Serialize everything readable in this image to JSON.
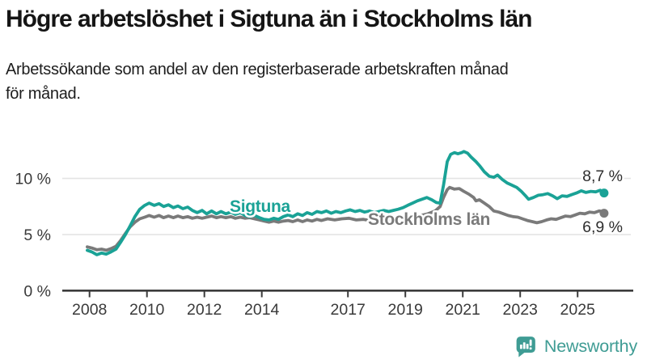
{
  "colors": {
    "sigtuna": "#1aa296",
    "stockholm": "#7a7a7a",
    "grid": "#e4e4e4",
    "axis": "#3c3c3c",
    "axis_text": "#3a3a3a",
    "title_text": "#151515",
    "brand_teal": "#3f9c94"
  },
  "footer": {
    "brand": "Newsworthy",
    "brand_icon": "bar-chart-speech-bubble-icon"
  },
  "chart_data": {
    "type": "line",
    "title": "Högre arbetslöshet i Sigtuna än i Stockholms län",
    "subtitle": "Arbetssökande som andel av den registerbaserade arbetskraften månad för månad.",
    "subtitle_lines": [
      "Arbetssökande som andel av den registerbaserade arbetskraften månad",
      "för månad."
    ],
    "xlabel": "",
    "ylabel": "",
    "unit": "%",
    "grid": "horizontal",
    "legend_position": "inline-labels",
    "x_axis": {
      "ticks": [
        2008,
        2010,
        2012,
        2014,
        2017,
        2019,
        2021,
        2023,
        2025
      ],
      "range": [
        2007.9,
        2026.3
      ]
    },
    "y_axis": {
      "ticks": [
        {
          "value": 0,
          "label": "0 %"
        },
        {
          "value": 5,
          "label": "5 %"
        },
        {
          "value": 10,
          "label": "10 %"
        }
      ],
      "range": [
        0,
        13
      ]
    },
    "series": [
      {
        "name": "Sigtuna",
        "color": "#1aa296",
        "end_label": "8,7 %",
        "end_value": 8.7,
        "points": [
          [
            2007.92,
            3.6
          ],
          [
            2008.08,
            3.45
          ],
          [
            2008.25,
            3.2
          ],
          [
            2008.42,
            3.35
          ],
          [
            2008.58,
            3.25
          ],
          [
            2008.75,
            3.45
          ],
          [
            2008.92,
            3.7
          ],
          [
            2009.08,
            4.3
          ],
          [
            2009.25,
            5.0
          ],
          [
            2009.42,
            5.8
          ],
          [
            2009.58,
            6.6
          ],
          [
            2009.75,
            7.25
          ],
          [
            2009.92,
            7.6
          ],
          [
            2010.08,
            7.8
          ],
          [
            2010.25,
            7.6
          ],
          [
            2010.42,
            7.75
          ],
          [
            2010.58,
            7.5
          ],
          [
            2010.75,
            7.65
          ],
          [
            2010.92,
            7.4
          ],
          [
            2011.08,
            7.55
          ],
          [
            2011.25,
            7.3
          ],
          [
            2011.42,
            7.45
          ],
          [
            2011.58,
            7.15
          ],
          [
            2011.75,
            6.95
          ],
          [
            2011.92,
            7.15
          ],
          [
            2012.08,
            6.85
          ],
          [
            2012.25,
            7.1
          ],
          [
            2012.42,
            6.85
          ],
          [
            2012.58,
            7.05
          ],
          [
            2012.75,
            6.85
          ],
          [
            2012.92,
            7.0
          ],
          [
            2013.08,
            6.8
          ],
          [
            2013.25,
            6.95
          ],
          [
            2013.42,
            6.7
          ],
          [
            2013.58,
            6.6
          ],
          [
            2013.75,
            6.7
          ],
          [
            2013.92,
            6.5
          ],
          [
            2014.08,
            6.35
          ],
          [
            2014.25,
            6.3
          ],
          [
            2014.42,
            6.45
          ],
          [
            2014.58,
            6.35
          ],
          [
            2014.75,
            6.6
          ],
          [
            2014.92,
            6.75
          ],
          [
            2015.08,
            6.6
          ],
          [
            2015.25,
            6.85
          ],
          [
            2015.42,
            6.7
          ],
          [
            2015.58,
            6.95
          ],
          [
            2015.75,
            6.8
          ],
          [
            2015.92,
            7.05
          ],
          [
            2016.08,
            6.95
          ],
          [
            2016.25,
            7.1
          ],
          [
            2016.42,
            6.9
          ],
          [
            2016.58,
            7.05
          ],
          [
            2016.75,
            6.95
          ],
          [
            2016.92,
            7.1
          ],
          [
            2017.08,
            7.2
          ],
          [
            2017.25,
            7.05
          ],
          [
            2017.42,
            7.15
          ],
          [
            2017.58,
            7.0
          ],
          [
            2017.75,
            7.1
          ],
          [
            2017.92,
            6.95
          ],
          [
            2018.08,
            7.05
          ],
          [
            2018.25,
            7.15
          ],
          [
            2018.42,
            7.05
          ],
          [
            2018.58,
            7.15
          ],
          [
            2018.75,
            7.25
          ],
          [
            2018.92,
            7.4
          ],
          [
            2019.08,
            7.6
          ],
          [
            2019.25,
            7.8
          ],
          [
            2019.42,
            8.0
          ],
          [
            2019.58,
            8.15
          ],
          [
            2019.75,
            8.3
          ],
          [
            2019.92,
            8.1
          ],
          [
            2020.08,
            7.85
          ],
          [
            2020.21,
            7.8
          ],
          [
            2020.33,
            9.4
          ],
          [
            2020.46,
            11.5
          ],
          [
            2020.58,
            12.15
          ],
          [
            2020.71,
            12.3
          ],
          [
            2020.83,
            12.2
          ],
          [
            2020.96,
            12.3
          ],
          [
            2021.04,
            12.4
          ],
          [
            2021.17,
            12.25
          ],
          [
            2021.29,
            11.9
          ],
          [
            2021.46,
            11.5
          ],
          [
            2021.58,
            11.15
          ],
          [
            2021.75,
            10.6
          ],
          [
            2021.92,
            10.2
          ],
          [
            2022.08,
            10.1
          ],
          [
            2022.21,
            10.3
          ],
          [
            2022.38,
            9.9
          ],
          [
            2022.54,
            9.6
          ],
          [
            2022.71,
            9.4
          ],
          [
            2022.88,
            9.2
          ],
          [
            2023.04,
            8.85
          ],
          [
            2023.17,
            8.5
          ],
          [
            2023.29,
            8.15
          ],
          [
            2023.46,
            8.3
          ],
          [
            2023.63,
            8.5
          ],
          [
            2023.79,
            8.55
          ],
          [
            2023.96,
            8.65
          ],
          [
            2024.13,
            8.45
          ],
          [
            2024.29,
            8.2
          ],
          [
            2024.46,
            8.45
          ],
          [
            2024.63,
            8.4
          ],
          [
            2024.79,
            8.55
          ],
          [
            2024.96,
            8.7
          ],
          [
            2025.13,
            8.9
          ],
          [
            2025.29,
            8.75
          ],
          [
            2025.46,
            8.85
          ],
          [
            2025.63,
            8.8
          ],
          [
            2025.79,
            8.95
          ],
          [
            2025.92,
            8.7
          ]
        ]
      },
      {
        "name": "Stockholms län",
        "color": "#7a7a7a",
        "end_label": "6,9 %",
        "end_value": 6.9,
        "points": [
          [
            2007.92,
            3.9
          ],
          [
            2008.08,
            3.8
          ],
          [
            2008.25,
            3.65
          ],
          [
            2008.42,
            3.7
          ],
          [
            2008.58,
            3.6
          ],
          [
            2008.75,
            3.75
          ],
          [
            2008.92,
            3.95
          ],
          [
            2009.08,
            4.45
          ],
          [
            2009.25,
            5.1
          ],
          [
            2009.42,
            5.7
          ],
          [
            2009.58,
            6.1
          ],
          [
            2009.75,
            6.4
          ],
          [
            2009.92,
            6.55
          ],
          [
            2010.08,
            6.7
          ],
          [
            2010.25,
            6.55
          ],
          [
            2010.42,
            6.7
          ],
          [
            2010.58,
            6.5
          ],
          [
            2010.75,
            6.65
          ],
          [
            2010.92,
            6.5
          ],
          [
            2011.08,
            6.65
          ],
          [
            2011.25,
            6.5
          ],
          [
            2011.42,
            6.6
          ],
          [
            2011.58,
            6.45
          ],
          [
            2011.75,
            6.55
          ],
          [
            2011.92,
            6.45
          ],
          [
            2012.08,
            6.55
          ],
          [
            2012.25,
            6.65
          ],
          [
            2012.42,
            6.5
          ],
          [
            2012.58,
            6.6
          ],
          [
            2012.75,
            6.5
          ],
          [
            2012.92,
            6.6
          ],
          [
            2013.08,
            6.45
          ],
          [
            2013.25,
            6.55
          ],
          [
            2013.42,
            6.45
          ],
          [
            2013.58,
            6.5
          ],
          [
            2013.75,
            6.4
          ],
          [
            2013.92,
            6.3
          ],
          [
            2014.08,
            6.2
          ],
          [
            2014.25,
            6.1
          ],
          [
            2014.42,
            6.2
          ],
          [
            2014.58,
            6.1
          ],
          [
            2014.75,
            6.2
          ],
          [
            2014.92,
            6.25
          ],
          [
            2015.08,
            6.15
          ],
          [
            2015.25,
            6.3
          ],
          [
            2015.42,
            6.15
          ],
          [
            2015.58,
            6.3
          ],
          [
            2015.75,
            6.2
          ],
          [
            2015.92,
            6.35
          ],
          [
            2016.08,
            6.25
          ],
          [
            2016.29,
            6.4
          ],
          [
            2016.54,
            6.3
          ],
          [
            2016.79,
            6.4
          ],
          [
            2017.04,
            6.45
          ],
          [
            2017.29,
            6.3
          ],
          [
            2017.54,
            6.35
          ],
          [
            2017.79,
            6.25
          ],
          [
            2018.04,
            6.35
          ],
          [
            2018.29,
            6.25
          ],
          [
            2018.54,
            6.35
          ],
          [
            2018.79,
            6.45
          ],
          [
            2019.04,
            6.5
          ],
          [
            2019.29,
            6.6
          ],
          [
            2019.54,
            6.7
          ],
          [
            2019.79,
            6.85
          ],
          [
            2020.04,
            7.1
          ],
          [
            2020.21,
            7.5
          ],
          [
            2020.33,
            8.3
          ],
          [
            2020.46,
            9.0
          ],
          [
            2020.54,
            9.2
          ],
          [
            2020.71,
            9.05
          ],
          [
            2020.88,
            9.1
          ],
          [
            2021.04,
            8.85
          ],
          [
            2021.21,
            8.6
          ],
          [
            2021.38,
            8.3
          ],
          [
            2021.46,
            8.0
          ],
          [
            2021.58,
            8.1
          ],
          [
            2021.75,
            7.8
          ],
          [
            2021.92,
            7.5
          ],
          [
            2022.08,
            7.1
          ],
          [
            2022.25,
            7.0
          ],
          [
            2022.42,
            6.85
          ],
          [
            2022.58,
            6.7
          ],
          [
            2022.75,
            6.6
          ],
          [
            2022.92,
            6.55
          ],
          [
            2023.08,
            6.4
          ],
          [
            2023.25,
            6.25
          ],
          [
            2023.42,
            6.15
          ],
          [
            2023.58,
            6.05
          ],
          [
            2023.75,
            6.15
          ],
          [
            2023.92,
            6.3
          ],
          [
            2024.08,
            6.4
          ],
          [
            2024.25,
            6.35
          ],
          [
            2024.42,
            6.5
          ],
          [
            2024.58,
            6.65
          ],
          [
            2024.75,
            6.6
          ],
          [
            2024.92,
            6.75
          ],
          [
            2025.08,
            6.9
          ],
          [
            2025.25,
            6.85
          ],
          [
            2025.42,
            7.0
          ],
          [
            2025.58,
            6.95
          ],
          [
            2025.75,
            7.1
          ],
          [
            2025.88,
            7.05
          ],
          [
            2025.92,
            6.9
          ]
        ]
      }
    ]
  }
}
